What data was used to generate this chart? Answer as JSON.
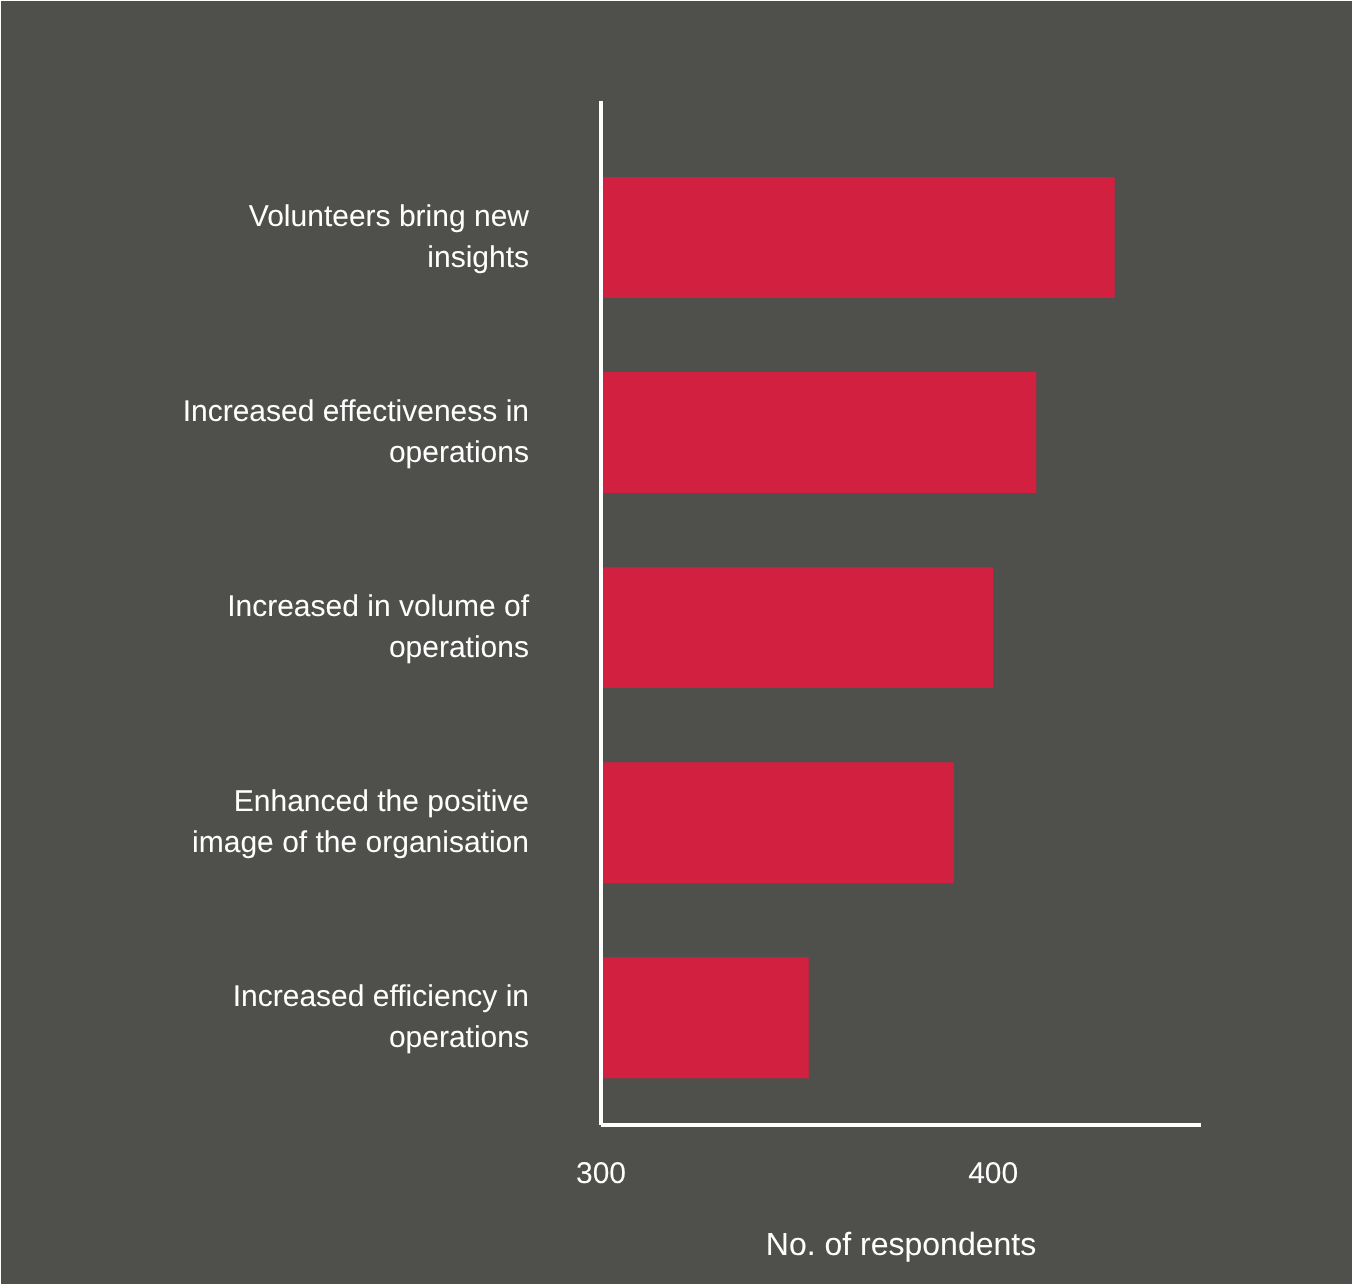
{
  "chart_data": {
    "type": "bar",
    "orientation": "horizontal",
    "xlabel": "No. of respondents",
    "categories": [
      "Volunteers bring new insights",
      "Increased effectiveness in operations",
      "Increased in volume of operations",
      "Enhanced the positive image of the organisation",
      "Increased efficiency in operations"
    ],
    "values": [
      431,
      411,
      400,
      390,
      353
    ],
    "color": "#d12040",
    "xlim": [
      300,
      453
    ],
    "xticks": [
      300,
      400
    ],
    "grid": false
  }
}
